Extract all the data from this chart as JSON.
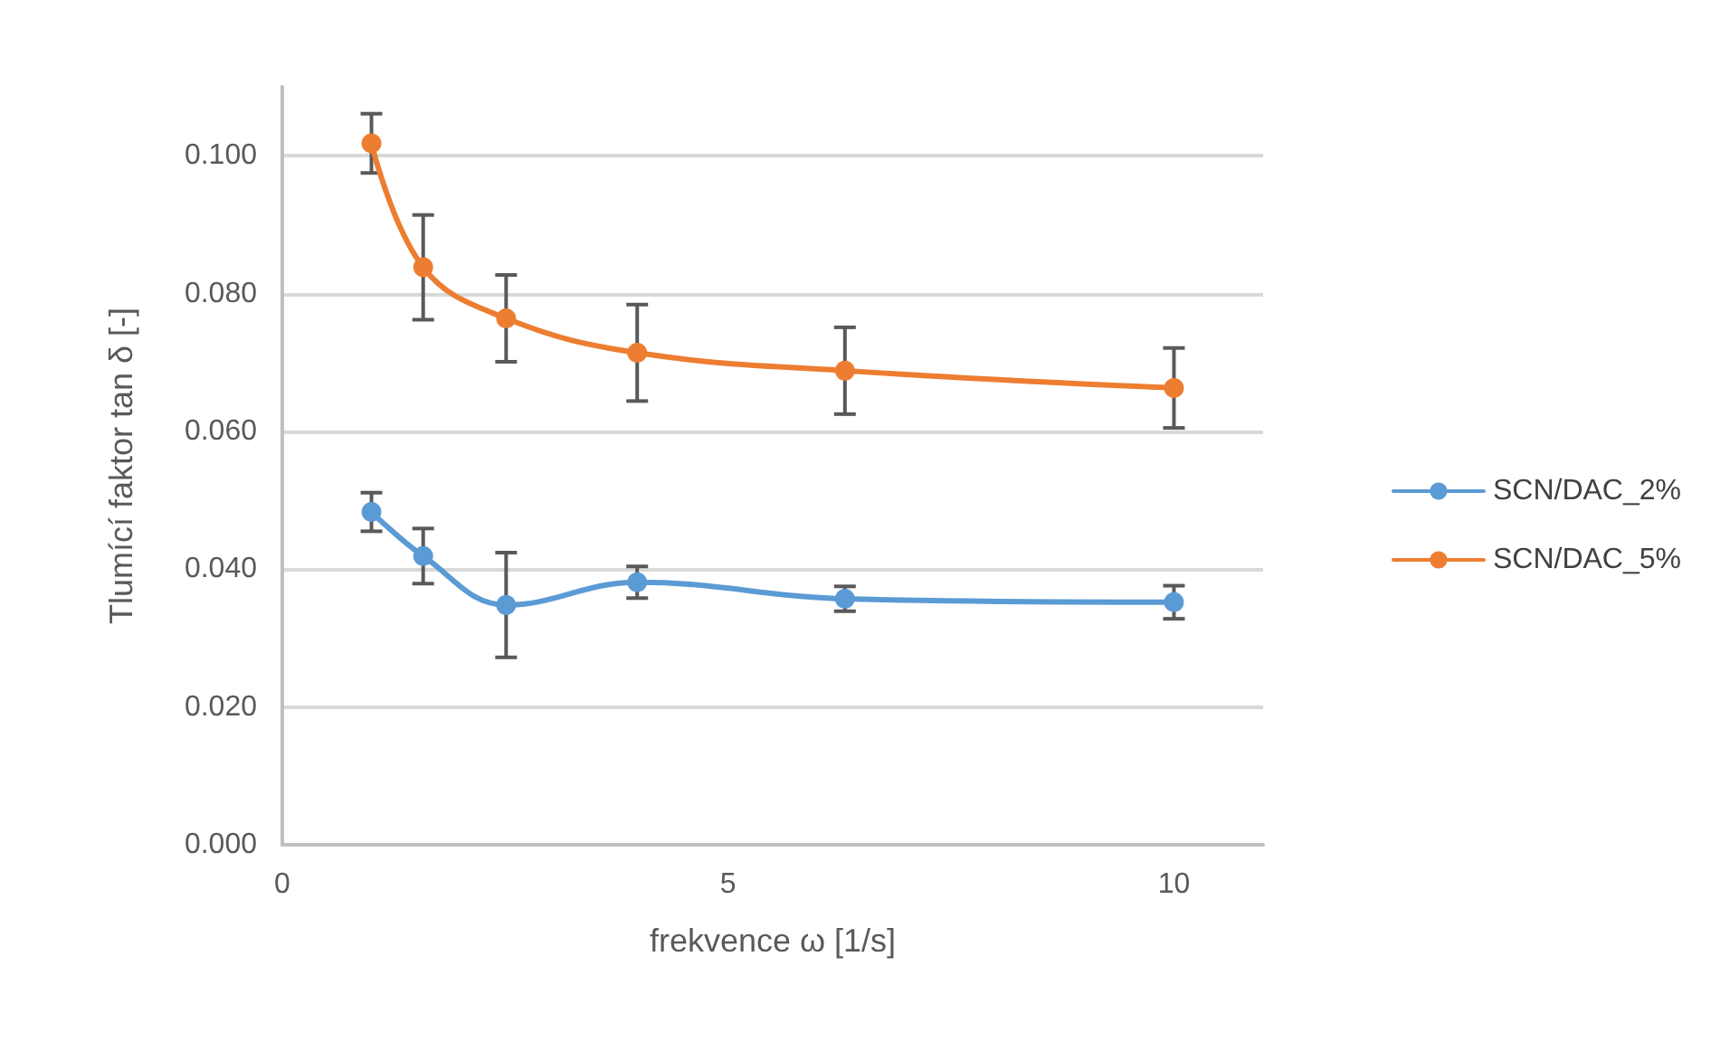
{
  "chart_data": {
    "type": "line",
    "xlabel": "frekvence ω [1/s]",
    "ylabel": "Tlumící faktor tan δ [-]",
    "x": [
      1,
      1.58,
      2.51,
      3.98,
      6.31,
      10
    ],
    "series": [
      {
        "name": "SCN/DAC_2%",
        "color": "#5b9bd5",
        "values": [
          0.0483,
          0.0419,
          0.0348,
          0.0381,
          0.0357,
          0.0352
        ],
        "errors": [
          0.0028,
          0.004,
          0.0076,
          0.0023,
          0.0018,
          0.0024
        ]
      },
      {
        "name": "SCN/DAC_5%",
        "color": "#ed7d31",
        "values": [
          0.1018,
          0.0838,
          0.0764,
          0.0714,
          0.0688,
          0.0663
        ],
        "errors": [
          0.0043,
          0.0076,
          0.0063,
          0.007,
          0.0063,
          0.0058
        ]
      }
    ],
    "xlim": [
      0,
      11
    ],
    "xticks": [
      0,
      5,
      10
    ],
    "ylim": [
      0,
      0.11
    ],
    "yticks": [
      {
        "value": 0,
        "label": "0.000"
      },
      {
        "value": 0.02,
        "label": "0.020"
      },
      {
        "value": 0.04,
        "label": "0.040"
      },
      {
        "value": 0.06,
        "label": "0.060"
      },
      {
        "value": 0.08,
        "label": "0.080"
      },
      {
        "value": 0.1,
        "label": "0.100"
      }
    ],
    "grid": "y",
    "legend": "right",
    "marker": "circle",
    "line_style": "solid"
  }
}
